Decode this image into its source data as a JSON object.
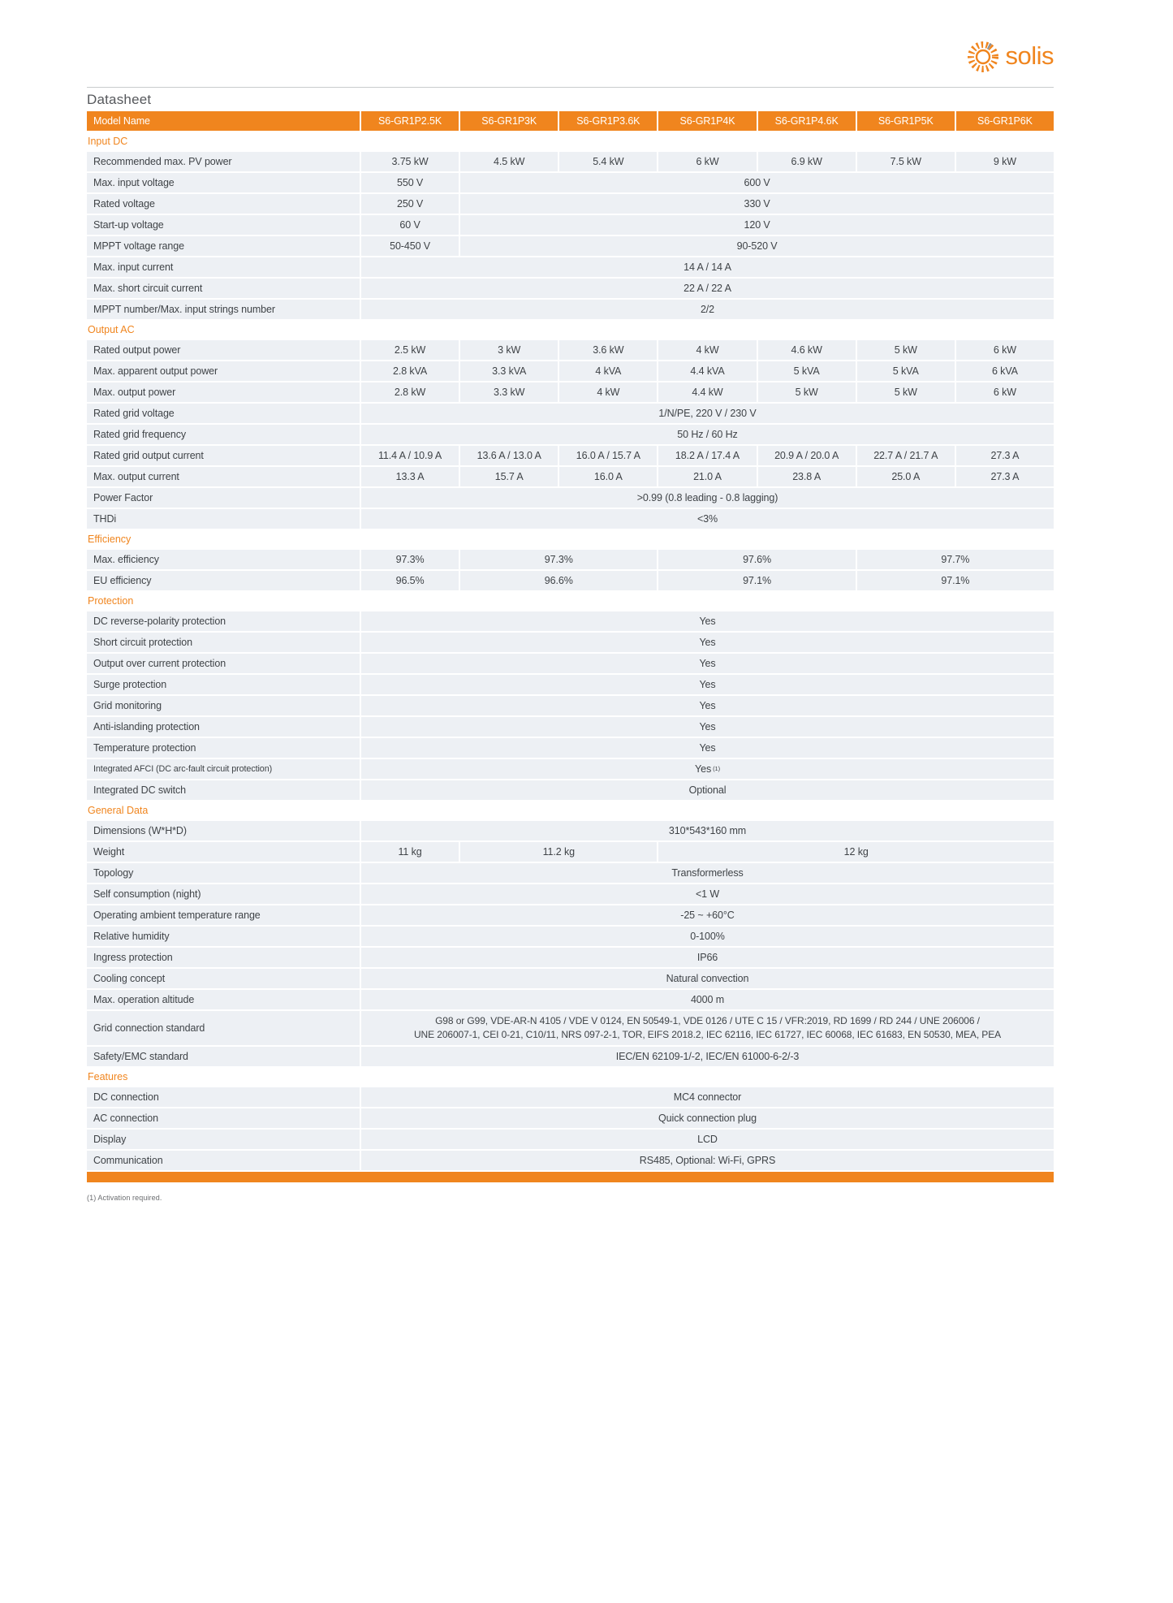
{
  "page": {
    "brand": "solis",
    "title": "Datasheet",
    "footnote": "(1) Activation required.",
    "colors": {
      "accent": "#f0851e",
      "row_bg": "#edf0f4",
      "header_text": "#ffffff",
      "body_text": "#3f4347"
    }
  },
  "table": {
    "header": {
      "label": "Model Name",
      "models": [
        "S6-GR1P2.5K",
        "S6-GR1P3K",
        "S6-GR1P3.6K",
        "S6-GR1P4K",
        "S6-GR1P4.6K",
        "S6-GR1P5K",
        "S6-GR1P6K"
      ]
    },
    "sections": [
      {
        "title": "Input DC",
        "rows": [
          {
            "label": "Recommended max. PV power",
            "cells": [
              {
                "v": "3.75 kW",
                "span": 1
              },
              {
                "v": "4.5 kW",
                "span": 1
              },
              {
                "v": "5.4 kW",
                "span": 1
              },
              {
                "v": "6 kW",
                "span": 1
              },
              {
                "v": "6.9 kW",
                "span": 1
              },
              {
                "v": "7.5 kW",
                "span": 1
              },
              {
                "v": "9 kW",
                "span": 1
              }
            ]
          },
          {
            "label": "Max. input voltage",
            "cells": [
              {
                "v": "550 V",
                "span": 1
              },
              {
                "v": "600 V",
                "span": 6
              }
            ]
          },
          {
            "label": "Rated voltage",
            "cells": [
              {
                "v": "250 V",
                "span": 1
              },
              {
                "v": "330 V",
                "span": 6
              }
            ]
          },
          {
            "label": "Start-up voltage",
            "cells": [
              {
                "v": "60 V",
                "span": 1
              },
              {
                "v": "120 V",
                "span": 6
              }
            ]
          },
          {
            "label": "MPPT voltage range",
            "cells": [
              {
                "v": "50-450 V",
                "span": 1
              },
              {
                "v": "90-520 V",
                "span": 6
              }
            ]
          },
          {
            "label": "Max. input current",
            "cells": [
              {
                "v": "14 A / 14 A",
                "span": 7
              }
            ]
          },
          {
            "label": "Max. short circuit current",
            "cells": [
              {
                "v": "22 A / 22 A",
                "span": 7
              }
            ]
          },
          {
            "label": "MPPT number/Max. input strings number",
            "cells": [
              {
                "v": "2/2",
                "span": 7
              }
            ]
          }
        ]
      },
      {
        "title": "Output AC",
        "rows": [
          {
            "label": "Rated output power",
            "cells": [
              {
                "v": "2.5 kW",
                "span": 1
              },
              {
                "v": "3 kW",
                "span": 1
              },
              {
                "v": "3.6 kW",
                "span": 1
              },
              {
                "v": "4 kW",
                "span": 1
              },
              {
                "v": "4.6 kW",
                "span": 1
              },
              {
                "v": "5 kW",
                "span": 1
              },
              {
                "v": "6 kW",
                "span": 1
              }
            ]
          },
          {
            "label": "Max. apparent output power",
            "cells": [
              {
                "v": "2.8 kVA",
                "span": 1
              },
              {
                "v": "3.3 kVA",
                "span": 1
              },
              {
                "v": "4 kVA",
                "span": 1
              },
              {
                "v": "4.4 kVA",
                "span": 1
              },
              {
                "v": "5 kVA",
                "span": 1
              },
              {
                "v": "5 kVA",
                "span": 1
              },
              {
                "v": "6 kVA",
                "span": 1
              }
            ]
          },
          {
            "label": "Max. output power",
            "cells": [
              {
                "v": "2.8 kW",
                "span": 1
              },
              {
                "v": "3.3 kW",
                "span": 1
              },
              {
                "v": "4 kW",
                "span": 1
              },
              {
                "v": "4.4 kW",
                "span": 1
              },
              {
                "v": "5 kW",
                "span": 1
              },
              {
                "v": "5 kW",
                "span": 1
              },
              {
                "v": "6 kW",
                "span": 1
              }
            ]
          },
          {
            "label": "Rated grid voltage",
            "cells": [
              {
                "v": "1/N/PE, 220 V / 230 V",
                "span": 7
              }
            ]
          },
          {
            "label": "Rated grid frequency",
            "cells": [
              {
                "v": "50 Hz / 60 Hz",
                "span": 7
              }
            ]
          },
          {
            "label": "Rated grid output current",
            "cells": [
              {
                "v": "11.4 A / 10.9 A",
                "span": 1
              },
              {
                "v": "13.6 A / 13.0 A",
                "span": 1
              },
              {
                "v": "16.0 A / 15.7 A",
                "span": 1
              },
              {
                "v": "18.2 A / 17.4 A",
                "span": 1
              },
              {
                "v": "20.9 A / 20.0 A",
                "span": 1
              },
              {
                "v": "22.7 A / 21.7 A",
                "span": 1
              },
              {
                "v": "27.3 A",
                "span": 1
              }
            ]
          },
          {
            "label": "Max. output current",
            "cells": [
              {
                "v": "13.3 A",
                "span": 1
              },
              {
                "v": "15.7 A",
                "span": 1
              },
              {
                "v": "16.0 A",
                "span": 1
              },
              {
                "v": "21.0 A",
                "span": 1
              },
              {
                "v": "23.8 A",
                "span": 1
              },
              {
                "v": "25.0 A",
                "span": 1
              },
              {
                "v": "27.3 A",
                "span": 1
              }
            ]
          },
          {
            "label": "Power Factor",
            "cells": [
              {
                "v": ">0.99 (0.8 leading - 0.8 lagging)",
                "span": 7
              }
            ]
          },
          {
            "label": "THDi",
            "cells": [
              {
                "v": "<3%",
                "span": 7
              }
            ]
          }
        ]
      },
      {
        "title": "Efficiency",
        "rows": [
          {
            "label": "Max. efficiency",
            "cells": [
              {
                "v": "97.3%",
                "span": 1
              },
              {
                "v": "97.3%",
                "span": 2
              },
              {
                "v": "97.6%",
                "span": 2
              },
              {
                "v": "97.7%",
                "span": 2
              }
            ]
          },
          {
            "label": "EU efficiency",
            "cells": [
              {
                "v": "96.5%",
                "span": 1
              },
              {
                "v": "96.6%",
                "span": 2
              },
              {
                "v": "97.1%",
                "span": 2
              },
              {
                "v": "97.1%",
                "span": 2
              }
            ]
          }
        ]
      },
      {
        "title": "Protection",
        "rows": [
          {
            "label": "DC reverse-polarity protection",
            "cells": [
              {
                "v": "Yes",
                "span": 7
              }
            ]
          },
          {
            "label": "Short circuit protection",
            "cells": [
              {
                "v": "Yes",
                "span": 7
              }
            ]
          },
          {
            "label": "Output over current protection",
            "cells": [
              {
                "v": "Yes",
                "span": 7
              }
            ]
          },
          {
            "label": "Surge protection",
            "cells": [
              {
                "v": "Yes",
                "span": 7
              }
            ]
          },
          {
            "label": "Grid monitoring",
            "cells": [
              {
                "v": "Yes",
                "span": 7
              }
            ]
          },
          {
            "label": "Anti-islanding protection",
            "cells": [
              {
                "v": "Yes",
                "span": 7
              }
            ]
          },
          {
            "label": "Temperature protection",
            "cells": [
              {
                "v": "Yes",
                "span": 7
              }
            ]
          },
          {
            "label": "Integrated AFCI (DC arc-fault circuit protection)",
            "small": true,
            "cells": [
              {
                "v": "Yes",
                "sup": "(1)",
                "span": 7
              }
            ]
          },
          {
            "label": "Integrated DC switch",
            "cells": [
              {
                "v": "Optional",
                "span": 7
              }
            ]
          }
        ]
      },
      {
        "title": "General Data",
        "rows": [
          {
            "label": "Dimensions (W*H*D)",
            "cells": [
              {
                "v": "310*543*160 mm",
                "span": 7
              }
            ]
          },
          {
            "label": "Weight",
            "cells": [
              {
                "v": "11 kg",
                "span": 1
              },
              {
                "v": "11.2 kg",
                "span": 2
              },
              {
                "v": "12 kg",
                "span": 4
              }
            ]
          },
          {
            "label": "Topology",
            "cells": [
              {
                "v": "Transformerless",
                "span": 7
              }
            ]
          },
          {
            "label": "Self consumption (night)",
            "cells": [
              {
                "v": "<1 W",
                "span": 7
              }
            ]
          },
          {
            "label": "Operating ambient temperature range",
            "cells": [
              {
                "v": "-25 ~ +60°C",
                "span": 7
              }
            ]
          },
          {
            "label": "Relative humidity",
            "cells": [
              {
                "v": "0-100%",
                "span": 7
              }
            ]
          },
          {
            "label": "Ingress protection",
            "cells": [
              {
                "v": "IP66",
                "span": 7
              }
            ]
          },
          {
            "label": "Cooling concept",
            "cells": [
              {
                "v": "Natural convection",
                "span": 7
              }
            ]
          },
          {
            "label": "Max. operation altitude",
            "cells": [
              {
                "v": "4000 m",
                "span": 7
              }
            ]
          },
          {
            "label": "Grid connection standard",
            "cells": [
              {
                "lines": [
                  "G98 or G99, VDE-AR-N 4105 / VDE V 0124, EN 50549-1, VDE 0126 / UTE C 15 / VFR:2019, RD 1699 / RD 244 / UNE 206006 /",
                  "UNE 206007-1, CEI 0-21, C10/11, NRS 097-2-1, TOR, EIFS 2018.2, IEC 62116, IEC 61727, IEC 60068, IEC 61683, EN 50530, MEA, PEA"
                ],
                "span": 7
              }
            ]
          },
          {
            "label": "Safety/EMC standard",
            "cells": [
              {
                "v": "IEC/EN 62109-1/-2, IEC/EN 61000-6-2/-3",
                "span": 7
              }
            ]
          }
        ]
      },
      {
        "title": "Features",
        "rows": [
          {
            "label": "DC connection",
            "cells": [
              {
                "v": "MC4 connector",
                "span": 7
              }
            ]
          },
          {
            "label": "AC connection",
            "cells": [
              {
                "v": "Quick connection plug",
                "span": 7
              }
            ]
          },
          {
            "label": "Display",
            "cells": [
              {
                "v": "LCD",
                "span": 7
              }
            ]
          },
          {
            "label": "Communication",
            "cells": [
              {
                "v": "RS485, Optional: Wi-Fi, GPRS",
                "span": 7
              }
            ]
          }
        ]
      }
    ]
  }
}
